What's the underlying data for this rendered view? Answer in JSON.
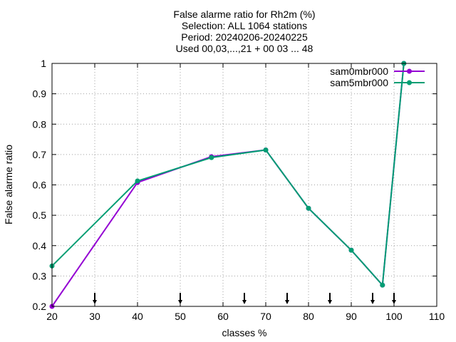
{
  "chart_data": {
    "type": "line",
    "title_lines": [
      "False alarme ratio  for Rh2m (%)",
      "Selection: ALL   1064 stations",
      "Period: 20240206-20240225",
      "Used 00,03,...,21 + 00 03 ... 48"
    ],
    "xlabel": "classes %",
    "ylabel": "False alarme ratio",
    "xlim": [
      20,
      110
    ],
    "ylim": [
      0.2,
      1.0
    ],
    "xticks": [
      20,
      30,
      40,
      50,
      60,
      70,
      80,
      90,
      100,
      110
    ],
    "yticks": [
      0.2,
      0.3,
      0.4,
      0.5,
      0.6,
      0.7,
      0.8,
      0.9,
      1.0
    ],
    "ytick_labels": [
      "0.2",
      "0.3",
      "0.4",
      "0.5",
      "0.6",
      "0.7",
      "0.8",
      "0.9",
      "1"
    ],
    "grid": true,
    "legend_position": "top-right",
    "class_markers_x": [
      30,
      50,
      65,
      75,
      85,
      95,
      100
    ],
    "series": [
      {
        "name": "sam0mbr000",
        "color": "#9400d3",
        "x": [
          20,
          40,
          57.3,
          70,
          80,
          90,
          97.3,
          102.3
        ],
        "y": [
          0.2,
          0.608,
          0.693,
          0.715,
          0.523,
          0.385,
          0.27,
          1.0
        ]
      },
      {
        "name": "sam5mbr000",
        "color": "#009e73",
        "x": [
          20,
          40,
          57.3,
          70,
          80,
          90,
          97.3,
          102.3
        ],
        "y": [
          0.333,
          0.613,
          0.69,
          0.715,
          0.523,
          0.385,
          0.27,
          1.0
        ]
      }
    ]
  }
}
